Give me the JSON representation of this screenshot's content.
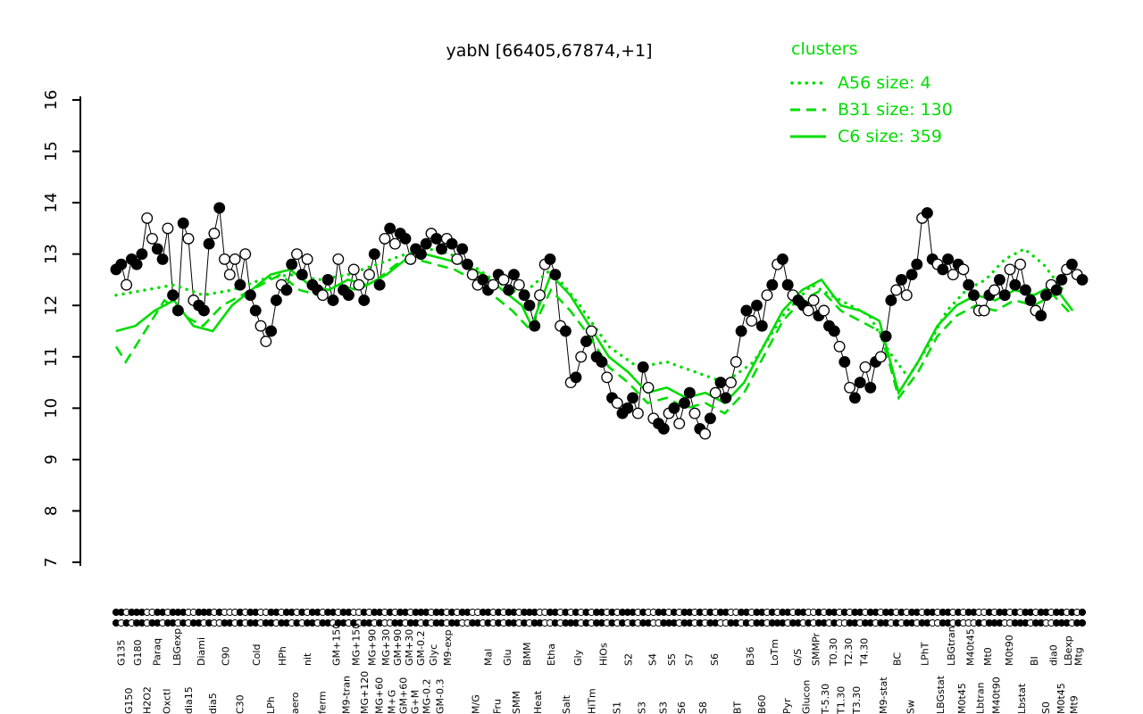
{
  "colors": {
    "cluster_green": "#00DC00",
    "series_black": "#000000",
    "background": "#FFFFFF"
  },
  "chart_data": {
    "type": "line",
    "title": "yabN [66405,67874,+1]",
    "legend_title": "clusters",
    "ylim": [
      7,
      16
    ],
    "y_ticks": [
      7,
      8,
      9,
      10,
      11,
      12,
      13,
      14,
      15,
      16
    ],
    "grid": false,
    "legend_position": "top-right",
    "main_series": {
      "name": "yabN expression",
      "marker": "circle",
      "color": "#000000",
      "values": [
        12.7,
        12.8,
        12.4,
        12.9,
        12.8,
        13.0,
        13.7,
        13.3,
        13.1,
        12.9,
        13.5,
        12.2,
        11.9,
        13.6,
        13.3,
        12.1,
        12.0,
        11.9,
        13.2,
        13.4,
        13.9,
        12.9,
        12.6,
        12.9,
        12.4,
        13.0,
        12.2,
        11.9,
        11.6,
        11.3,
        11.5,
        12.1,
        12.4,
        12.3,
        12.8,
        13.0,
        12.6,
        12.9,
        12.4,
        12.3,
        12.2,
        12.5,
        12.1,
        12.9,
        12.3,
        12.2,
        12.7,
        12.4,
        12.1,
        12.6,
        13.0,
        12.4,
        13.3,
        13.5,
        13.2,
        13.4,
        13.3,
        12.9,
        13.1,
        13.0,
        13.2,
        13.4,
        13.3,
        13.1,
        13.3,
        13.2,
        12.9,
        13.1,
        12.8,
        12.6,
        12.4,
        12.5,
        12.3,
        12.4,
        12.6,
        12.5,
        12.3,
        12.6,
        12.4,
        12.2,
        12.0,
        11.6,
        12.2,
        12.8,
        12.9,
        12.6,
        11.6,
        11.5,
        10.5,
        10.6,
        11.0,
        11.3,
        11.5,
        11.0,
        10.9,
        10.6,
        10.2,
        10.1,
        9.9,
        10.0,
        10.2,
        9.9,
        10.8,
        10.4,
        9.8,
        9.7,
        9.6,
        9.9,
        10.0,
        9.7,
        10.1,
        10.3,
        9.9,
        9.6,
        9.5,
        9.8,
        10.3,
        10.5,
        10.2,
        10.5,
        10.9,
        11.5,
        11.9,
        11.7,
        12.0,
        11.6,
        12.2,
        12.4,
        12.8,
        12.9,
        12.4,
        12.2,
        12.1,
        12.0,
        11.9,
        12.1,
        11.8,
        11.9,
        11.6,
        11.5,
        11.2,
        10.9,
        10.4,
        10.2,
        10.5,
        10.8,
        10.4,
        10.9,
        11.0,
        11.4,
        12.1,
        12.3,
        12.5,
        12.2,
        12.6,
        12.8,
        13.7,
        13.8,
        12.9,
        12.8,
        12.7,
        12.9,
        12.6,
        12.8,
        12.7,
        12.4,
        12.2,
        11.9,
        11.9,
        12.2,
        12.3,
        12.5,
        12.2,
        12.7,
        12.4,
        12.8,
        12.3,
        12.1,
        11.9,
        11.8,
        12.2,
        12.4,
        12.3,
        12.5,
        12.7,
        12.8,
        12.6,
        12.5
      ],
      "filled": [
        1,
        1,
        0,
        1,
        1,
        1,
        0,
        0,
        1,
        1,
        0,
        1,
        1,
        1,
        0,
        0,
        1,
        1,
        1,
        0,
        1,
        0,
        0,
        0,
        1,
        0,
        1,
        1,
        0,
        0,
        1,
        1,
        0,
        1,
        1,
        0,
        1,
        0,
        1,
        1,
        0,
        1,
        1,
        0,
        1,
        1,
        0,
        0,
        1,
        0,
        1,
        1,
        0,
        1,
        0,
        1,
        1,
        0,
        1,
        1,
        1,
        0,
        1,
        1,
        0,
        1,
        0,
        1,
        1,
        0,
        0,
        1,
        1,
        0,
        1,
        0,
        1,
        1,
        0,
        1,
        1,
        1,
        0,
        0,
        1,
        1,
        0,
        1,
        0,
        1,
        0,
        1,
        0,
        1,
        1,
        0,
        1,
        0,
        1,
        1,
        1,
        0,
        1,
        0,
        0,
        1,
        1,
        0,
        1,
        0,
        1,
        1,
        0,
        1,
        0,
        1,
        0,
        1,
        1,
        0,
        0,
        1,
        1,
        0,
        1,
        1,
        0,
        1,
        0,
        1,
        1,
        0,
        1,
        1,
        0,
        0,
        1,
        0,
        1,
        1,
        0,
        1,
        0,
        1,
        1,
        0,
        1,
        1,
        0,
        1,
        1,
        0,
        1,
        0,
        1,
        1,
        0,
        1,
        1,
        0,
        1,
        1,
        0,
        1,
        0,
        1,
        1,
        0,
        0,
        1,
        0,
        1,
        1,
        0,
        1,
        0,
        1,
        1,
        0,
        1,
        1,
        0,
        1,
        1,
        0,
        1,
        0,
        1
      ]
    },
    "clusters": [
      {
        "name": "A56",
        "size": 4,
        "label": "A56 size: 4",
        "style": "dotted",
        "x": [
          0.0,
          0.03,
          0.06,
          0.09,
          0.12,
          0.15,
          0.18,
          0.21,
          0.24,
          0.27,
          0.3,
          0.33,
          0.36,
          0.39,
          0.42,
          0.45,
          0.48,
          0.51,
          0.54,
          0.57,
          0.6,
          0.63,
          0.66,
          0.69,
          0.72,
          0.75,
          0.78,
          0.8,
          0.82,
          0.84,
          0.86,
          0.88,
          0.9,
          0.92,
          0.94,
          0.96,
          0.98
        ],
        "values": [
          12.2,
          12.3,
          12.4,
          12.2,
          12.3,
          12.5,
          12.6,
          12.5,
          12.6,
          12.8,
          13.0,
          13.1,
          12.9,
          12.5,
          12.2,
          12.7,
          12.0,
          11.2,
          10.8,
          10.9,
          10.7,
          10.5,
          10.9,
          11.8,
          12.4,
          12.1,
          11.8,
          11.1,
          10.6,
          11.2,
          11.9,
          12.3,
          12.5,
          12.9,
          13.1,
          12.8,
          12.3
        ]
      },
      {
        "name": "B31",
        "size": 130,
        "label": "B31 size: 130",
        "style": "dashed",
        "x": [
          0.0,
          0.01,
          0.03,
          0.05,
          0.07,
          0.09,
          0.11,
          0.13,
          0.15,
          0.17,
          0.19,
          0.21,
          0.23,
          0.25,
          0.27,
          0.29,
          0.31,
          0.33,
          0.35,
          0.37,
          0.39,
          0.41,
          0.43,
          0.45,
          0.47,
          0.49,
          0.51,
          0.53,
          0.55,
          0.57,
          0.59,
          0.61,
          0.63,
          0.65,
          0.67,
          0.69,
          0.71,
          0.73,
          0.75,
          0.77,
          0.79,
          0.8,
          0.81,
          0.83,
          0.85,
          0.87,
          0.89,
          0.91,
          0.93,
          0.95,
          0.97,
          0.99
        ],
        "values": [
          11.2,
          10.9,
          11.5,
          12.1,
          11.8,
          11.6,
          12.0,
          12.2,
          12.4,
          12.6,
          12.3,
          12.2,
          12.4,
          12.3,
          12.5,
          12.8,
          12.9,
          12.8,
          12.7,
          12.5,
          12.2,
          11.9,
          11.5,
          12.3,
          11.9,
          11.4,
          10.8,
          10.5,
          10.1,
          10.2,
          10.0,
          10.1,
          9.9,
          10.3,
          11.0,
          11.7,
          12.1,
          12.3,
          11.9,
          11.7,
          11.5,
          10.9,
          10.2,
          10.7,
          11.4,
          11.8,
          12.0,
          11.9,
          12.1,
          12.0,
          12.2,
          11.8
        ]
      },
      {
        "name": "C6",
        "size": 359,
        "label": "C6 size: 359",
        "style": "solid",
        "x": [
          0.0,
          0.02,
          0.04,
          0.06,
          0.08,
          0.1,
          0.12,
          0.14,
          0.16,
          0.18,
          0.2,
          0.22,
          0.24,
          0.26,
          0.28,
          0.3,
          0.32,
          0.34,
          0.36,
          0.38,
          0.4,
          0.42,
          0.43,
          0.45,
          0.47,
          0.49,
          0.51,
          0.53,
          0.55,
          0.57,
          0.59,
          0.61,
          0.63,
          0.65,
          0.67,
          0.69,
          0.71,
          0.73,
          0.75,
          0.77,
          0.79,
          0.8,
          0.81,
          0.83,
          0.85,
          0.87,
          0.89,
          0.91,
          0.93,
          0.95,
          0.97,
          0.99
        ],
        "values": [
          11.5,
          11.6,
          11.9,
          12.1,
          11.6,
          11.5,
          12.0,
          12.3,
          12.6,
          12.7,
          12.4,
          12.3,
          12.5,
          12.4,
          12.6,
          12.9,
          13.0,
          12.9,
          12.8,
          12.6,
          12.3,
          12.0,
          11.6,
          12.6,
          12.2,
          11.6,
          11.0,
          10.7,
          10.3,
          10.4,
          10.2,
          10.3,
          10.1,
          10.5,
          11.2,
          11.9,
          12.3,
          12.5,
          12.0,
          11.9,
          11.7,
          11.0,
          10.3,
          10.9,
          11.6,
          12.0,
          12.2,
          12.1,
          12.3,
          12.2,
          12.4,
          11.9
        ]
      }
    ],
    "x_tick_labels": [
      {
        "t": "G135",
        "p": 0.005
      },
      {
        "t": "G150",
        "p": 0.013
      },
      {
        "t": "G180",
        "p": 0.022
      },
      {
        "t": "H2O2",
        "p": 0.032
      },
      {
        "t": "Paraq",
        "p": 0.042
      },
      {
        "t": "Oxctl",
        "p": 0.052
      },
      {
        "t": "LBGexp",
        "p": 0.063
      },
      {
        "t": "dia15",
        "p": 0.075
      },
      {
        "t": "Diami",
        "p": 0.088
      },
      {
        "t": "dia5",
        "p": 0.1
      },
      {
        "t": "C90",
        "p": 0.113
      },
      {
        "t": "C30",
        "p": 0.128
      },
      {
        "t": "Cold",
        "p": 0.145
      },
      {
        "t": "LPh",
        "p": 0.16
      },
      {
        "t": "HPh",
        "p": 0.172
      },
      {
        "t": "aero",
        "p": 0.185
      },
      {
        "t": "nit",
        "p": 0.198
      },
      {
        "t": "ferm",
        "p": 0.213
      },
      {
        "t": "GM+150",
        "p": 0.228
      },
      {
        "t": "M9-tran",
        "p": 0.238
      },
      {
        "t": "MG+150",
        "p": 0.248
      },
      {
        "t": "MG+120",
        "p": 0.257
      },
      {
        "t": "MG+90",
        "p": 0.265
      },
      {
        "t": "MG+60",
        "p": 0.272
      },
      {
        "t": "MG+30",
        "p": 0.279
      },
      {
        "t": "M+G",
        "p": 0.285
      },
      {
        "t": "GM+90",
        "p": 0.291
      },
      {
        "t": "GM+60",
        "p": 0.297
      },
      {
        "t": "GM+30",
        "p": 0.303
      },
      {
        "t": "G+M",
        "p": 0.309
      },
      {
        "t": "GM-0.2",
        "p": 0.315
      },
      {
        "t": "MG-0.2",
        "p": 0.321
      },
      {
        "t": "Glyc",
        "p": 0.328
      },
      {
        "t": "GM-0.3",
        "p": 0.335
      },
      {
        "t": "M9-exp",
        "p": 0.343
      },
      {
        "t": "M/G",
        "p": 0.372
      },
      {
        "t": "Mal",
        "p": 0.385
      },
      {
        "t": "Fru",
        "p": 0.394
      },
      {
        "t": "Glu",
        "p": 0.405
      },
      {
        "t": "SMM",
        "p": 0.414
      },
      {
        "t": "BMM",
        "p": 0.425
      },
      {
        "t": "Heat",
        "p": 0.436
      },
      {
        "t": "Etha",
        "p": 0.45
      },
      {
        "t": "Salt",
        "p": 0.466
      },
      {
        "t": "Gly",
        "p": 0.478
      },
      {
        "t": "HiTm",
        "p": 0.492
      },
      {
        "t": "HiOs",
        "p": 0.504
      },
      {
        "t": "S1",
        "p": 0.518
      },
      {
        "t": "S2",
        "p": 0.53
      },
      {
        "t": "S3",
        "p": 0.544
      },
      {
        "t": "S4",
        "p": 0.555
      },
      {
        "t": "S3",
        "p": 0.566
      },
      {
        "t": "S5",
        "p": 0.575
      },
      {
        "t": "S6",
        "p": 0.585
      },
      {
        "t": "S7",
        "p": 0.593
      },
      {
        "t": "S8",
        "p": 0.607
      },
      {
        "t": "S6",
        "p": 0.619
      },
      {
        "t": "BT",
        "p": 0.643
      },
      {
        "t": "B36",
        "p": 0.656
      },
      {
        "t": "B60",
        "p": 0.668
      },
      {
        "t": "LoTm",
        "p": 0.681
      },
      {
        "t": "Pyr",
        "p": 0.694
      },
      {
        "t": "G/S",
        "p": 0.705
      },
      {
        "t": "Glucon",
        "p": 0.714
      },
      {
        "t": "SMMPr",
        "p": 0.724
      },
      {
        "t": "T-5.30",
        "p": 0.734
      },
      {
        "t": "T0.30",
        "p": 0.742
      },
      {
        "t": "T1.30",
        "p": 0.75
      },
      {
        "t": "T2.30",
        "p": 0.758
      },
      {
        "t": "T3.30",
        "p": 0.766
      },
      {
        "t": "T4.30",
        "p": 0.774
      },
      {
        "t": "M9-stat",
        "p": 0.794
      },
      {
        "t": "BC",
        "p": 0.808
      },
      {
        "t": "Sw",
        "p": 0.822
      },
      {
        "t": "LPhT",
        "p": 0.837
      },
      {
        "t": "LBGstat",
        "p": 0.853
      },
      {
        "t": "LBGtran",
        "p": 0.864
      },
      {
        "t": "M0t45",
        "p": 0.875
      },
      {
        "t": "M40t45",
        "p": 0.884
      },
      {
        "t": "Lbtran",
        "p": 0.894
      },
      {
        "t": "Mt0",
        "p": 0.902
      },
      {
        "t": "M40t90",
        "p": 0.911
      },
      {
        "t": "M0t90",
        "p": 0.924
      },
      {
        "t": "Lbstat",
        "p": 0.937
      },
      {
        "t": "BI",
        "p": 0.95
      },
      {
        "t": "S0",
        "p": 0.962
      },
      {
        "t": "dia0",
        "p": 0.97
      },
      {
        "t": "M0t45",
        "p": 0.978
      },
      {
        "t": "LBexp",
        "p": 0.985
      },
      {
        "t": "Mt9",
        "p": 0.991
      },
      {
        "t": "Mtg",
        "p": 0.996
      }
    ]
  }
}
